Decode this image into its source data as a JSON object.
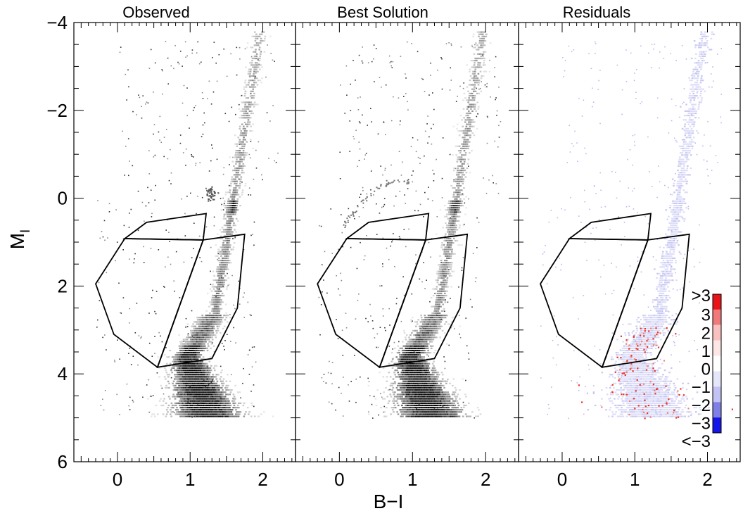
{
  "chart_data": [
    {
      "type": "scatter",
      "title": "Observed",
      "xlabel": "B−I",
      "ylabel": "M",
      "ylabel_sub": "I",
      "xlim": [
        -0.6,
        2.45
      ],
      "ylim": [
        6,
        -4
      ],
      "x_ticks": [
        "0",
        "1",
        "2"
      ],
      "y_ticks": [
        "−4",
        "−2",
        "0",
        "2",
        "4",
        "6"
      ],
      "density": "grayscale",
      "regions": [
        {
          "name": "upper-box",
          "points": [
            [
              0.4,
              0.55
            ],
            [
              1.22,
              0.35
            ],
            [
              1.18,
              0.95
            ],
            [
              0.1,
              0.92
            ]
          ]
        },
        {
          "name": "left-box",
          "points": [
            [
              0.1,
              0.92
            ],
            [
              1.18,
              0.95
            ],
            [
              0.55,
              3.85
            ],
            [
              -0.05,
              3.1
            ],
            [
              -0.3,
              1.95
            ]
          ]
        },
        {
          "name": "right-box",
          "points": [
            [
              1.18,
              0.95
            ],
            [
              1.75,
              0.82
            ],
            [
              1.65,
              2.5
            ],
            [
              1.3,
              3.65
            ],
            [
              0.55,
              3.85
            ]
          ]
        }
      ]
    },
    {
      "type": "scatter",
      "title": "Best Solution",
      "xlim": [
        -0.6,
        2.45
      ],
      "ylim": [
        6,
        -4
      ],
      "x_ticks": [
        "0",
        "1",
        "2"
      ],
      "density": "grayscale"
    },
    {
      "type": "scatter",
      "title": "Residuals",
      "xlim": [
        -0.6,
        2.45
      ],
      "ylim": [
        6,
        -4
      ],
      "x_ticks": [
        "0",
        "1",
        "2"
      ],
      "density": "diverging",
      "colorbar": {
        "labels": [
          ">3",
          "3",
          "2",
          "1",
          "0",
          "−1",
          "−2",
          "−3",
          "<−3"
        ],
        "colors": [
          "#e8141a",
          "#f07a7a",
          "#f9c0c0",
          "#fde6e6",
          "#ffffff",
          "#e6e6fb",
          "#c2c2f4",
          "#7f7fe6",
          "#1515e8"
        ]
      }
    }
  ]
}
